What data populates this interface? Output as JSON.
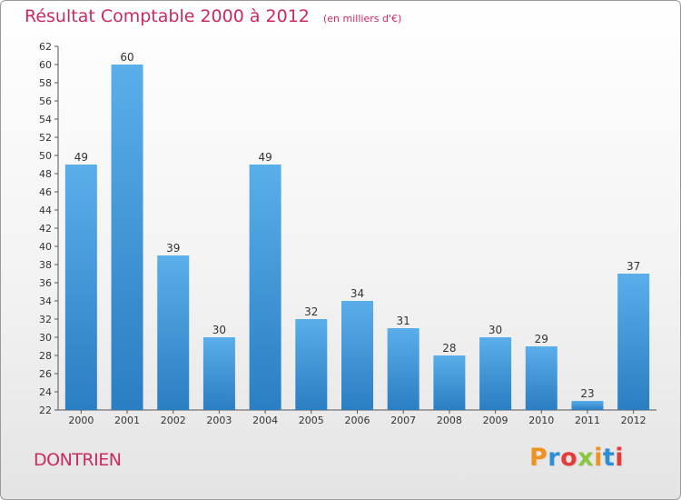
{
  "chart_data": {
    "type": "bar",
    "title": "Résultat Comptable 2000 à 2012",
    "subtitle": "(en milliers d'€)",
    "categories": [
      "2000",
      "2001",
      "2002",
      "2003",
      "2004",
      "2005",
      "2006",
      "2007",
      "2008",
      "2009",
      "2010",
      "2011",
      "2012"
    ],
    "values": [
      49,
      60,
      39,
      30,
      49,
      32,
      34,
      31,
      28,
      30,
      29,
      23,
      37
    ],
    "ylim": [
      22,
      62
    ],
    "y_ticks": [
      22,
      24,
      26,
      28,
      30,
      32,
      34,
      36,
      38,
      40,
      42,
      44,
      46,
      48,
      50,
      52,
      54,
      56,
      58,
      60,
      62
    ],
    "xlabel": "",
    "ylabel": "",
    "grid": false,
    "legend": "none",
    "colors": {
      "bar_top": "#5aaeea",
      "bar_bottom": "#2a7ec2",
      "axis": "#555555",
      "title": "#cc2a5e"
    }
  },
  "footer": {
    "commune": "DONTRIEN"
  },
  "logo": {
    "letters": [
      {
        "ch": "P",
        "color": "#f0921e"
      },
      {
        "ch": "r",
        "color": "#2c8fd4"
      },
      {
        "ch": "o",
        "color": "#e53b3b"
      },
      {
        "ch": "x",
        "color": "#8cc63f"
      },
      {
        "ch": "i",
        "color": "#f0921e"
      },
      {
        "ch": "t",
        "color": "#2c8fd4"
      },
      {
        "ch": "i",
        "color": "#e53b3b"
      }
    ]
  }
}
